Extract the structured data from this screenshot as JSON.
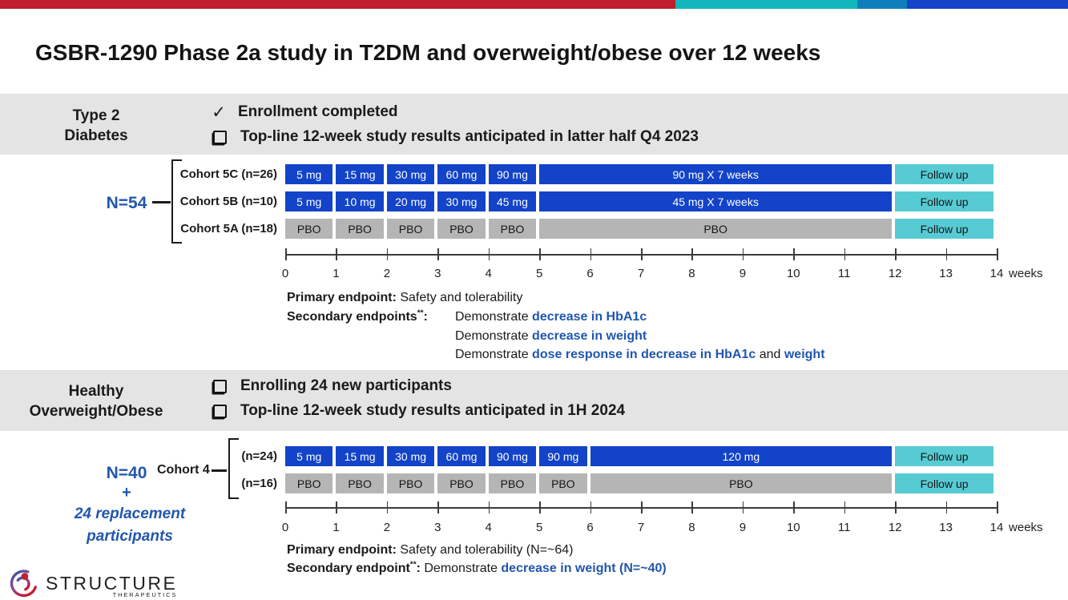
{
  "title": "GSBR-1290 Phase 2a study in T2DM and overweight/obese over 12 weeks",
  "top_bar": {
    "colors": [
      "#BE1E2D",
      "#12B7BE",
      "#0F7FBC",
      "#1243C8"
    ]
  },
  "icons": {
    "check": "✓"
  },
  "colors": {
    "dose_blue": "#1243C8",
    "placebo_gray": "#B5B5B5",
    "followup_teal": "#57CBD4",
    "highlight_blue": "#2156AE"
  },
  "axis": {
    "unit": "weeks",
    "weeks": [
      0,
      1,
      2,
      3,
      4,
      5,
      6,
      7,
      8,
      9,
      10,
      11,
      12,
      13,
      14
    ]
  },
  "sections": [
    {
      "band": {
        "label_lines": [
          "Type 2",
          "Diabetes"
        ],
        "bullets": [
          {
            "icon": "check",
            "text": "Enrollment completed"
          },
          {
            "icon": "checkbox",
            "text": "Top-line 12-week study results anticipated in latter half Q4 2023"
          }
        ]
      },
      "group": {
        "n_label": "N=54"
      },
      "rows": [
        {
          "label": "Cohort 5C (n=26)",
          "segments": [
            {
              "label": "5 mg",
              "start": 0,
              "end": 1,
              "type": "dose"
            },
            {
              "label": "15 mg",
              "start": 1,
              "end": 2,
              "type": "dose"
            },
            {
              "label": "30 mg",
              "start": 2,
              "end": 3,
              "type": "dose"
            },
            {
              "label": "60 mg",
              "start": 3,
              "end": 4,
              "type": "dose"
            },
            {
              "label": "90 mg",
              "start": 4,
              "end": 5,
              "type": "dose"
            },
            {
              "label": "90 mg X 7 weeks",
              "start": 5,
              "end": 12,
              "type": "dose"
            },
            {
              "label": "Follow up",
              "start": 12,
              "end": 14,
              "type": "followup"
            }
          ]
        },
        {
          "label": "Cohort 5B (n=10)",
          "segments": [
            {
              "label": "5 mg",
              "start": 0,
              "end": 1,
              "type": "dose"
            },
            {
              "label": "10 mg",
              "start": 1,
              "end": 2,
              "type": "dose"
            },
            {
              "label": "20 mg",
              "start": 2,
              "end": 3,
              "type": "dose"
            },
            {
              "label": "30 mg",
              "start": 3,
              "end": 4,
              "type": "dose"
            },
            {
              "label": "45 mg",
              "start": 4,
              "end": 5,
              "type": "dose"
            },
            {
              "label": "45 mg X 7 weeks",
              "start": 5,
              "end": 12,
              "type": "dose"
            },
            {
              "label": "Follow up",
              "start": 12,
              "end": 14,
              "type": "followup"
            }
          ]
        },
        {
          "label": "Cohort 5A (n=18)",
          "segments": [
            {
              "label": "PBO",
              "start": 0,
              "end": 1,
              "type": "pbo"
            },
            {
              "label": "PBO",
              "start": 1,
              "end": 2,
              "type": "pbo"
            },
            {
              "label": "PBO",
              "start": 2,
              "end": 3,
              "type": "pbo"
            },
            {
              "label": "PBO",
              "start": 3,
              "end": 4,
              "type": "pbo"
            },
            {
              "label": "PBO",
              "start": 4,
              "end": 5,
              "type": "pbo"
            },
            {
              "label": "PBO",
              "start": 5,
              "end": 12,
              "type": "pbo"
            },
            {
              "label": "Follow up",
              "start": 12,
              "end": 14,
              "type": "followup"
            }
          ]
        }
      ],
      "endpoints": {
        "primary_parts": [
          {
            "t": "Primary endpoint:",
            "b": 1
          },
          {
            "t": " Safety and tolerability"
          }
        ],
        "secondary_label_parts": [
          {
            "t": "Secondary endpoints",
            "b": 1
          },
          {
            "t": "**",
            "b": 1,
            "sup": 1
          },
          {
            "t": ":",
            "b": 1
          }
        ],
        "secondary_lines": [
          [
            {
              "t": "Demonstrate "
            },
            {
              "t": "decrease in HbA1c",
              "hl": 1
            }
          ],
          [
            {
              "t": "Demonstrate "
            },
            {
              "t": "decrease in weight",
              "hl": 1
            }
          ],
          [
            {
              "t": "Demonstrate "
            },
            {
              "t": "dose response in decrease in HbA1c",
              "hl": 1
            },
            {
              "t": " and "
            },
            {
              "t": "weight",
              "hl": 1
            }
          ]
        ]
      }
    },
    {
      "band": {
        "label_lines": [
          "Healthy",
          "Overweight/Obese"
        ],
        "bullets": [
          {
            "icon": "checkbox",
            "text": "Enrolling 24 new participants"
          },
          {
            "icon": "checkbox",
            "text": "Top-line 12-week study results anticipated in 1H 2024"
          }
        ]
      },
      "group": {
        "n_label": "N=40",
        "plus": "+",
        "replacement_lines": [
          "24 replacement",
          "participants"
        ],
        "cohort_label": "Cohort 4"
      },
      "rows": [
        {
          "label": "(n=24)",
          "segments": [
            {
              "label": "5 mg",
              "start": 0,
              "end": 1,
              "type": "dose"
            },
            {
              "label": "15 mg",
              "start": 1,
              "end": 2,
              "type": "dose"
            },
            {
              "label": "30 mg",
              "start": 2,
              "end": 3,
              "type": "dose"
            },
            {
              "label": "60 mg",
              "start": 3,
              "end": 4,
              "type": "dose"
            },
            {
              "label": "90 mg",
              "start": 4,
              "end": 5,
              "type": "dose"
            },
            {
              "label": "90 mg",
              "start": 5,
              "end": 6,
              "type": "dose"
            },
            {
              "label": "120 mg",
              "start": 6,
              "end": 12,
              "type": "dose"
            },
            {
              "label": "Follow up",
              "start": 12,
              "end": 14,
              "type": "followup"
            }
          ]
        },
        {
          "label": "(n=16)",
          "segments": [
            {
              "label": "PBO",
              "start": 0,
              "end": 1,
              "type": "pbo"
            },
            {
              "label": "PBO",
              "start": 1,
              "end": 2,
              "type": "pbo"
            },
            {
              "label": "PBO",
              "start": 2,
              "end": 3,
              "type": "pbo"
            },
            {
              "label": "PBO",
              "start": 3,
              "end": 4,
              "type": "pbo"
            },
            {
              "label": "PBO",
              "start": 4,
              "end": 5,
              "type": "pbo"
            },
            {
              "label": "PBO",
              "start": 5,
              "end": 6,
              "type": "pbo"
            },
            {
              "label": "PBO",
              "start": 6,
              "end": 12,
              "type": "pbo"
            },
            {
              "label": "Follow up",
              "start": 12,
              "end": 14,
              "type": "followup"
            }
          ]
        }
      ],
      "endpoints": {
        "primary_parts": [
          {
            "t": "Primary endpoint:",
            "b": 1
          },
          {
            "t": " Safety and tolerability (N=~64)"
          }
        ],
        "secondary_label_parts": [
          {
            "t": "Secondary endpoint",
            "b": 1
          },
          {
            "t": "**",
            "b": 1,
            "sup": 1
          },
          {
            "t": ":",
            "b": 1
          }
        ],
        "secondary_inline_parts": [
          {
            "t": " Demonstrate "
          },
          {
            "t": "decrease in weight (N=~40)",
            "hl": 1
          }
        ]
      }
    }
  ],
  "logo": {
    "name": "STRUCTURE",
    "sub": "THERAPEUTICS"
  }
}
